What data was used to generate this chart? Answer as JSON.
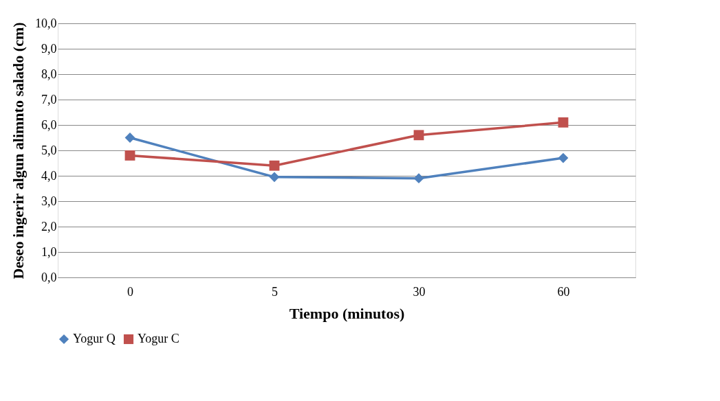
{
  "chart_data": {
    "type": "line",
    "xlabel": "Tiempo (minutos)",
    "ylabel": "Deseo ingerir algun alimnto salado (cm)",
    "categories": [
      "0",
      "5",
      "30",
      "60"
    ],
    "series": [
      {
        "name": "Yogur Q",
        "color": "#4f81bd",
        "marker": "diamond",
        "values": [
          5.5,
          3.95,
          3.9,
          4.7
        ]
      },
      {
        "name": "Yogur C",
        "color": "#c0504d",
        "marker": "square",
        "values": [
          4.8,
          4.4,
          5.6,
          6.1
        ]
      }
    ],
    "ylim": [
      0,
      10
    ],
    "yticks": [
      {
        "value": 0,
        "label": "0,0"
      },
      {
        "value": 1,
        "label": "1,0"
      },
      {
        "value": 2,
        "label": "2,0"
      },
      {
        "value": 3,
        "label": "3,0"
      },
      {
        "value": 4,
        "label": "4,0"
      },
      {
        "value": 5,
        "label": "5,0"
      },
      {
        "value": 6,
        "label": "6,0"
      },
      {
        "value": 7,
        "label": "7,0"
      },
      {
        "value": 8,
        "label": "8,0"
      },
      {
        "value": 9,
        "label": "9,0"
      },
      {
        "value": 10,
        "label": "10,0"
      }
    ],
    "grid": "y",
    "legend": "bottom",
    "line_style": "solid"
  }
}
